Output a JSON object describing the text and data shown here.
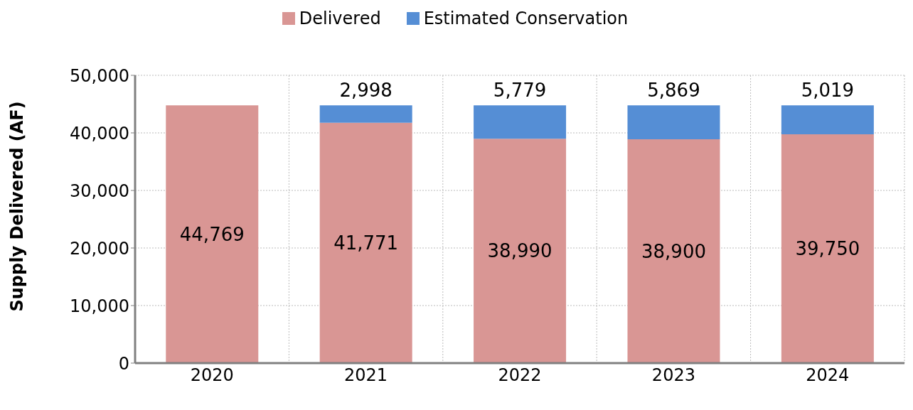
{
  "chart_data": {
    "type": "bar",
    "stacked": true,
    "ylabel": "Supply Delivered (AF)",
    "categories": [
      "2020",
      "2021",
      "2022",
      "2023",
      "2024"
    ],
    "series": [
      {
        "name": "Delivered",
        "color": "#d99694",
        "values": [
          44769,
          41771,
          38990,
          38900,
          39750
        ],
        "value_labels": [
          "44,769",
          "41,771",
          "38,990",
          "38,900",
          "39,750"
        ]
      },
      {
        "name": "Estimated Conservation",
        "color": "#558ed5",
        "values": [
          null,
          2998,
          5779,
          5869,
          5019
        ],
        "value_labels": [
          null,
          "2,998",
          "5,779",
          "5,869",
          "5,019"
        ]
      }
    ],
    "ylim": [
      0,
      50000
    ],
    "yticks": [
      0,
      {
        "value": 10000,
        "label": "10,000"
      },
      {
        "value": 20000,
        "label": "20,000"
      },
      {
        "value": 30000,
        "label": "30,000"
      },
      {
        "value": 40000,
        "label": "40,000"
      },
      {
        "value": 50000,
        "label": "50,000"
      }
    ],
    "grid": true,
    "legend": "top",
    "data_labels": true
  }
}
